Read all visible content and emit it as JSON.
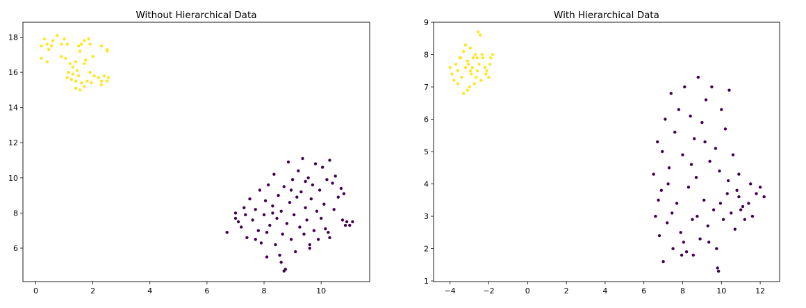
{
  "chart_data": [
    {
      "type": "scatter",
      "title": "Without Hierarchical Data",
      "xlabel": "",
      "ylabel": "",
      "xlim": [
        -0.45,
        11.7
      ],
      "ylim": [
        4.1,
        18.85
      ],
      "xticks": [
        0,
        2,
        4,
        6,
        8,
        10
      ],
      "yticks": [
        6,
        8,
        10,
        12,
        14,
        16,
        18
      ],
      "grid": false,
      "colors": {
        "cluster_a": "#440154",
        "cluster_b": "#fde725"
      },
      "series": [
        {
          "color_key": "cluster_b",
          "points": [
            [
              0.2,
              17.5
            ],
            [
              0.3,
              17.9
            ],
            [
              0.4,
              17.6
            ],
            [
              0.45,
              17.3
            ],
            [
              0.55,
              17.5
            ],
            [
              0.6,
              17.8
            ],
            [
              0.75,
              18.1
            ],
            [
              0.9,
              17.6
            ],
            [
              1.0,
              17.9
            ],
            [
              1.1,
              17.6
            ],
            [
              1.5,
              17.5
            ],
            [
              1.6,
              17.6
            ],
            [
              1.7,
              17.8
            ],
            [
              1.85,
              17.9
            ],
            [
              1.9,
              17.6
            ],
            [
              2.3,
              17.5
            ],
            [
              2.5,
              17.3
            ],
            [
              2.5,
              17.2
            ],
            [
              1.55,
              17.2
            ],
            [
              0.9,
              16.9
            ],
            [
              1.05,
              16.8
            ],
            [
              1.75,
              16.7
            ],
            [
              1.7,
              16.5
            ],
            [
              1.4,
              16.6
            ],
            [
              2.0,
              16.9
            ],
            [
              0.2,
              16.8
            ],
            [
              0.4,
              16.6
            ],
            [
              1.2,
              16.5
            ],
            [
              1.3,
              16.3
            ],
            [
              1.15,
              16.0
            ],
            [
              1.3,
              15.9
            ],
            [
              1.45,
              16.1
            ],
            [
              1.1,
              15.7
            ],
            [
              1.4,
              15.5
            ],
            [
              1.6,
              15.4
            ],
            [
              1.8,
              15.5
            ],
            [
              1.95,
              15.4
            ],
            [
              2.05,
              15.8
            ],
            [
              2.2,
              15.7
            ],
            [
              2.3,
              15.5
            ],
            [
              2.4,
              15.8
            ],
            [
              2.55,
              15.7
            ],
            [
              2.5,
              15.5
            ],
            [
              2.3,
              15.3
            ],
            [
              1.4,
              15.1
            ],
            [
              1.55,
              15.0
            ],
            [
              1.7,
              15.2
            ],
            [
              1.5,
              15.8
            ],
            [
              1.25,
              15.6
            ],
            [
              1.9,
              16.0
            ]
          ]
        },
        {
          "color_key": "cluster_a",
          "points": [
            [
              6.7,
              6.9
            ],
            [
              7.0,
              7.7
            ],
            [
              7.0,
              8.0
            ],
            [
              7.1,
              7.5
            ],
            [
              7.2,
              7.2
            ],
            [
              7.3,
              8.3
            ],
            [
              7.35,
              7.9
            ],
            [
              7.4,
              6.6
            ],
            [
              7.5,
              8.8
            ],
            [
              7.6,
              7.6
            ],
            [
              7.7,
              8.2
            ],
            [
              7.8,
              7.0
            ],
            [
              7.85,
              9.3
            ],
            [
              7.9,
              6.3
            ],
            [
              8.0,
              7.9
            ],
            [
              8.05,
              8.7
            ],
            [
              8.1,
              6.9
            ],
            [
              8.15,
              9.6
            ],
            [
              8.2,
              7.3
            ],
            [
              8.3,
              8.4
            ],
            [
              8.35,
              10.2
            ],
            [
              8.4,
              6.2
            ],
            [
              8.45,
              7.7
            ],
            [
              8.5,
              9.0
            ],
            [
              8.55,
              5.6
            ],
            [
              8.6,
              8.1
            ],
            [
              8.65,
              6.8
            ],
            [
              8.7,
              9.5
            ],
            [
              8.75,
              4.8
            ],
            [
              8.8,
              7.4
            ],
            [
              8.85,
              10.9
            ],
            [
              8.9,
              8.6
            ],
            [
              8.95,
              6.5
            ],
            [
              9.0,
              9.9
            ],
            [
              9.05,
              7.9
            ],
            [
              9.1,
              5.8
            ],
            [
              9.15,
              8.9
            ],
            [
              9.2,
              10.4
            ],
            [
              9.25,
              7.2
            ],
            [
              9.3,
              9.2
            ],
            [
              9.35,
              11.1
            ],
            [
              9.4,
              6.8
            ],
            [
              9.45,
              8.3
            ],
            [
              9.5,
              7.6
            ],
            [
              9.55,
              10.0
            ],
            [
              9.6,
              6.2
            ],
            [
              9.65,
              8.8
            ],
            [
              9.7,
              9.6
            ],
            [
              9.75,
              7.0
            ],
            [
              9.8,
              10.8
            ],
            [
              9.85,
              8.1
            ],
            [
              9.9,
              6.5
            ],
            [
              9.95,
              9.3
            ],
            [
              10.0,
              7.7
            ],
            [
              10.05,
              10.6
            ],
            [
              10.1,
              8.5
            ],
            [
              10.15,
              7.1
            ],
            [
              10.2,
              9.9
            ],
            [
              10.25,
              6.9
            ],
            [
              10.3,
              11.0
            ],
            [
              10.4,
              9.7
            ],
            [
              10.5,
              10.1
            ],
            [
              10.6,
              8.9
            ],
            [
              10.7,
              9.4
            ],
            [
              10.75,
              7.6
            ],
            [
              10.8,
              9.1
            ],
            [
              10.85,
              7.3
            ],
            [
              10.9,
              7.5
            ],
            [
              11.0,
              7.3
            ],
            [
              11.1,
              7.5
            ],
            [
              8.7,
              4.7
            ],
            [
              8.6,
              5.2
            ],
            [
              8.1,
              5.5
            ],
            [
              7.7,
              6.5
            ],
            [
              9.6,
              6.0
            ],
            [
              10.3,
              6.6
            ],
            [
              10.45,
              8.2
            ],
            [
              8.3,
              8.0
            ],
            [
              8.95,
              9.3
            ],
            [
              9.45,
              9.8
            ]
          ]
        }
      ]
    },
    {
      "type": "scatter",
      "title": "With Hierarchical Data",
      "xlabel": "",
      "ylabel": "",
      "xlim": [
        -4.85,
        13.0
      ],
      "ylim": [
        0.98,
        9.0
      ],
      "xticks": [
        -4,
        -2,
        0,
        2,
        4,
        6,
        8,
        10,
        12
      ],
      "yticks": [
        1,
        2,
        3,
        4,
        5,
        6,
        7,
        8,
        9
      ],
      "grid": false,
      "colors": {
        "cluster_a": "#440154",
        "cluster_b": "#fde725"
      },
      "series": [
        {
          "color_key": "cluster_b",
          "points": [
            [
              -4.0,
              7.6
            ],
            [
              -3.9,
              7.4
            ],
            [
              -3.8,
              7.2
            ],
            [
              -3.7,
              7.7
            ],
            [
              -3.6,
              7.5
            ],
            [
              -3.5,
              7.9
            ],
            [
              -3.4,
              7.3
            ],
            [
              -3.3,
              8.1
            ],
            [
              -3.2,
              7.6
            ],
            [
              -3.1,
              7.8
            ],
            [
              -3.0,
              7.0
            ],
            [
              -2.95,
              8.2
            ],
            [
              -2.9,
              7.4
            ],
            [
              -2.8,
              7.9
            ],
            [
              -2.75,
              7.1
            ],
            [
              -2.7,
              8.0
            ],
            [
              -2.6,
              7.5
            ],
            [
              -2.55,
              8.7
            ],
            [
              -2.5,
              7.7
            ],
            [
              -2.45,
              8.6
            ],
            [
              -2.4,
              7.2
            ],
            [
              -2.3,
              7.9
            ],
            [
              -2.2,
              7.6
            ],
            [
              -2.1,
              7.5
            ],
            [
              -2.0,
              7.3
            ],
            [
              -1.9,
              7.9
            ],
            [
              -1.8,
              8.0
            ],
            [
              -3.3,
              6.8
            ],
            [
              -3.1,
              6.9
            ],
            [
              -2.85,
              7.6
            ],
            [
              -3.45,
              7.9
            ],
            [
              -2.65,
              7.3
            ],
            [
              -2.35,
              8.0
            ],
            [
              -1.95,
              7.7
            ],
            [
              -3.6,
              7.1
            ],
            [
              -3.2,
              8.3
            ],
            [
              -2.95,
              7.5
            ],
            [
              -2.6,
              7.9
            ],
            [
              -2.15,
              7.4
            ],
            [
              -3.05,
              7.7
            ]
          ]
        },
        {
          "color_key": "cluster_a",
          "points": [
            [
              6.5,
              4.3
            ],
            [
              6.6,
              3.0
            ],
            [
              6.7,
              5.3
            ],
            [
              6.8,
              2.4
            ],
            [
              6.9,
              3.8
            ],
            [
              7.0,
              1.6
            ],
            [
              7.1,
              6.0
            ],
            [
              7.2,
              2.8
            ],
            [
              7.3,
              4.5
            ],
            [
              7.4,
              6.8
            ],
            [
              7.5,
              2.0
            ],
            [
              7.6,
              5.6
            ],
            [
              7.7,
              3.4
            ],
            [
              7.8,
              6.3
            ],
            [
              7.9,
              2.5
            ],
            [
              8.0,
              4.9
            ],
            [
              8.1,
              7.0
            ],
            [
              8.2,
              1.9
            ],
            [
              8.3,
              3.9
            ],
            [
              8.4,
              6.1
            ],
            [
              8.5,
              2.9
            ],
            [
              8.6,
              5.4
            ],
            [
              8.7,
              4.2
            ],
            [
              8.8,
              7.3
            ],
            [
              8.9,
              2.3
            ],
            [
              9.0,
              5.9
            ],
            [
              9.1,
              3.5
            ],
            [
              9.2,
              6.6
            ],
            [
              9.3,
              2.7
            ],
            [
              9.4,
              4.7
            ],
            [
              9.5,
              7.0
            ],
            [
              9.6,
              3.2
            ],
            [
              9.7,
              5.1
            ],
            [
              9.8,
              1.4
            ],
            [
              9.9,
              4.4
            ],
            [
              10.0,
              6.3
            ],
            [
              10.1,
              2.9
            ],
            [
              10.2,
              5.7
            ],
            [
              10.3,
              3.7
            ],
            [
              10.4,
              6.9
            ],
            [
              10.5,
              3.1
            ],
            [
              10.6,
              4.9
            ],
            [
              10.7,
              2.6
            ],
            [
              10.8,
              3.8
            ],
            [
              10.9,
              4.3
            ],
            [
              11.0,
              3.2
            ],
            [
              11.2,
              2.9
            ],
            [
              11.4,
              3.4
            ],
            [
              11.6,
              3.0
            ],
            [
              11.8,
              3.7
            ],
            [
              12.0,
              3.9
            ],
            [
              12.2,
              3.6
            ],
            [
              11.5,
              4.0
            ],
            [
              11.1,
              3.3
            ],
            [
              10.9,
              3.6
            ],
            [
              9.85,
              1.3
            ],
            [
              9.75,
              2.0
            ],
            [
              8.55,
              1.8
            ],
            [
              7.95,
              1.8
            ],
            [
              7.45,
              3.1
            ],
            [
              8.05,
              2.2
            ],
            [
              8.75,
              3.0
            ],
            [
              9.35,
              2.2
            ],
            [
              9.95,
              3.4
            ],
            [
              10.35,
              4.1
            ],
            [
              7.25,
              4.0
            ],
            [
              6.95,
              5.0
            ],
            [
              6.75,
              3.5
            ],
            [
              8.45,
              4.6
            ],
            [
              9.15,
              5.3
            ]
          ]
        }
      ]
    }
  ]
}
